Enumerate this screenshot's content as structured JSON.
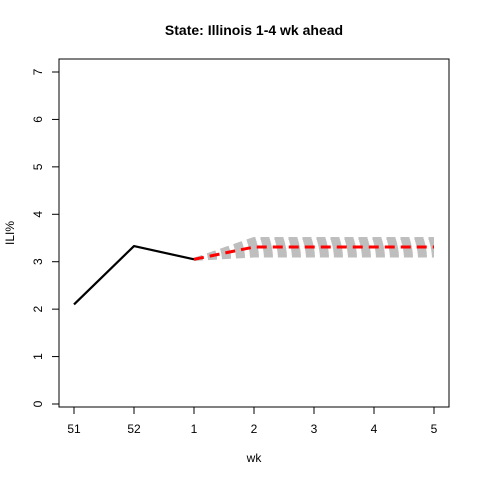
{
  "chart_data": {
    "type": "line",
    "title": "State: Illinois 1-4 wk ahead",
    "xlabel": "wk",
    "ylabel": "ILI%",
    "x_tick_labels": [
      "51",
      "52",
      "1",
      "2",
      "3",
      "4",
      "5"
    ],
    "ylim": [
      0,
      7
    ],
    "y_ticks": [
      0,
      1,
      2,
      3,
      4,
      5,
      6,
      7
    ],
    "grid": false,
    "series": [
      {
        "role": "observed",
        "color": "#000000",
        "style": "solid",
        "values": [
          {
            "x": "51",
            "y": 2.1
          },
          {
            "x": "52",
            "y": 3.33
          },
          {
            "x": "1",
            "y": 3.05
          }
        ]
      },
      {
        "role": "forecast-mean",
        "color": "#ff0000",
        "style": "dashed",
        "values": [
          {
            "x": "1",
            "y": 3.05
          },
          {
            "x": "2",
            "y": 3.31
          },
          {
            "x": "3",
            "y": 3.31
          },
          {
            "x": "4",
            "y": 3.31
          },
          {
            "x": "5",
            "y": 3.31
          }
        ]
      }
    ],
    "ensemble": {
      "color": "#bebebe",
      "style": "dashed",
      "start": {
        "x": "1",
        "y": 3.05
      },
      "x": [
        "2",
        "3",
        "4",
        "5"
      ],
      "levels": [
        3.12,
        3.17,
        3.21,
        3.25,
        3.29,
        3.33,
        3.37,
        3.41,
        3.45,
        3.49
      ]
    }
  }
}
